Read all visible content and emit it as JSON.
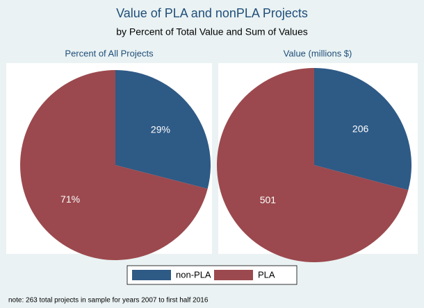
{
  "title": "Value of PLA and nonPLA Projects",
  "subtitle": "by Percent of Total Value and Sum of Values",
  "note": "note: 263 total projects in sample for years 2007 to first half 2016",
  "legend": {
    "position": "bottom"
  },
  "chart_data": [
    {
      "type": "pie",
      "title": "Percent of All Projects",
      "categories": [
        "non-PLA",
        "PLA"
      ],
      "values": [
        29,
        71
      ],
      "value_labels": [
        "29%",
        "71%"
      ],
      "colors": [
        "#2e5a86",
        "#9b494e"
      ]
    },
    {
      "type": "pie",
      "title": "Value (millions $)",
      "categories": [
        "non-PLA",
        "PLA"
      ],
      "values": [
        206,
        501
      ],
      "colors": [
        "#2e5a86",
        "#9b494e"
      ]
    }
  ]
}
